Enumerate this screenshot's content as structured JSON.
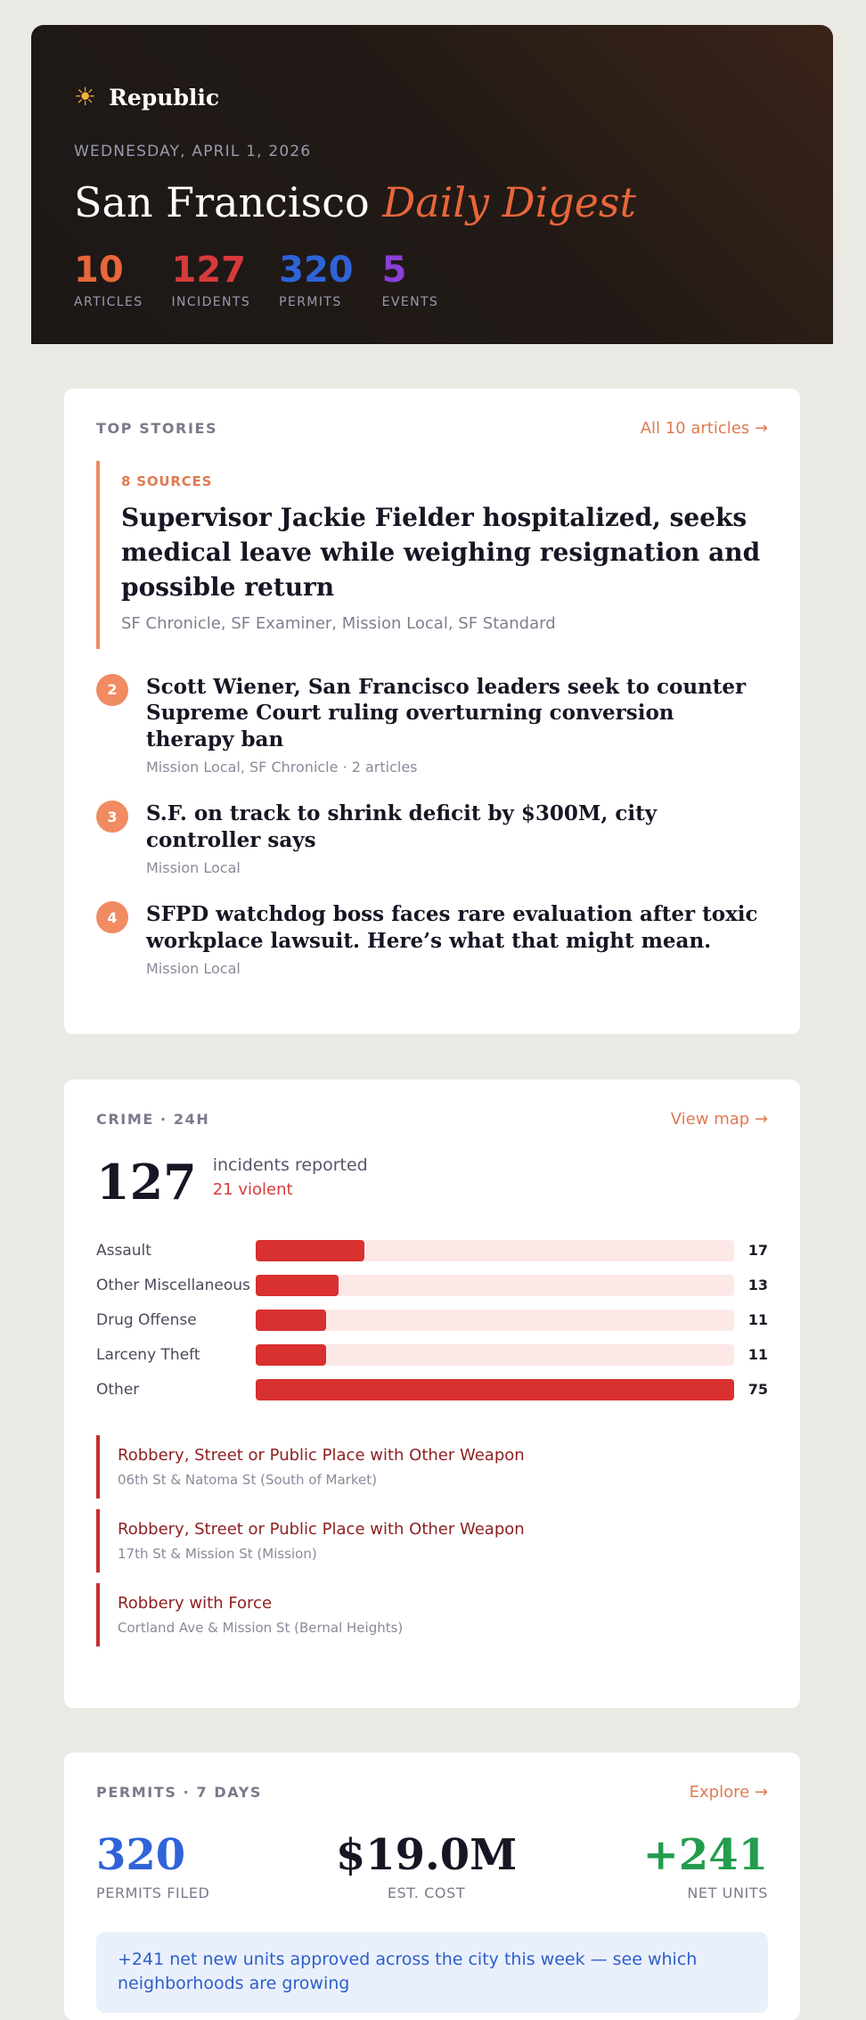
{
  "header": {
    "brand_icon": "sun-icon",
    "brand_name": "Republic",
    "date": "WEDNESDAY, APRIL 1, 2026",
    "title_main": "San Francisco ",
    "title_accent": "Daily Digest",
    "stats": [
      {
        "value": "10",
        "label": "ARTICLES",
        "color": "#e8663a"
      },
      {
        "value": "127",
        "label": "INCIDENTS",
        "color": "#d63b3b"
      },
      {
        "value": "320",
        "label": "PERMITS",
        "color": "#2f63d8"
      },
      {
        "value": "5",
        "label": "EVENTS",
        "color": "#8a3fd8"
      }
    ]
  },
  "top_stories": {
    "label": "TOP STORIES",
    "link": "All 10 articles →",
    "lead": {
      "source_count": "8 SOURCES",
      "title": "Supervisor Jackie Fielder hospitalized, seeks medical leave while weighing resignation and possible return",
      "sources": "SF Chronicle, SF Examiner, Mission Local, SF Standard"
    },
    "items": [
      {
        "rank": "2",
        "title": "Scott Wiener, San Francisco leaders seek to counter Supreme Court ruling overturning conversion therapy ban",
        "meta": "Mission Local, SF Chronicle · 2 articles"
      },
      {
        "rank": "3",
        "title": "S.F. on track to shrink deficit by $300M, city controller says",
        "meta": "Mission Local"
      },
      {
        "rank": "4",
        "title": "SFPD watchdog boss faces rare evaluation after toxic workplace lawsuit. Here’s what that might mean.",
        "meta": "Mission Local"
      }
    ]
  },
  "crime": {
    "label": "CRIME · 24H",
    "link": "View map →",
    "total": "127",
    "total_label": "incidents reported",
    "violent": "21 violent",
    "categories": [
      {
        "name": "Assault",
        "count": 17
      },
      {
        "name": "Other Miscellaneous",
        "count": 13
      },
      {
        "name": "Drug Offense",
        "count": 11
      },
      {
        "name": "Larceny Theft",
        "count": 11
      },
      {
        "name": "Other",
        "count": 75
      }
    ],
    "max_count": 75,
    "incidents": [
      {
        "title": "Robbery, Street or Public Place with Other Weapon",
        "location": "06th St & Natoma St (South of Market)"
      },
      {
        "title": "Robbery, Street or Public Place with Other Weapon",
        "location": "17th St & Mission St (Mission)"
      },
      {
        "title": "Robbery with Force",
        "location": "Cortland Ave & Mission St (Bernal Heights)"
      }
    ]
  },
  "permits": {
    "label": "PERMITS · 7 DAYS",
    "link": "Explore →",
    "filed": "320",
    "filed_label": "PERMITS FILED",
    "cost": "$19.0M",
    "cost_label": "EST. COST",
    "units": "+241",
    "units_label": "NET UNITS",
    "note": "+241 net new units approved across the city this week — see which neighborhoods are growing"
  }
}
